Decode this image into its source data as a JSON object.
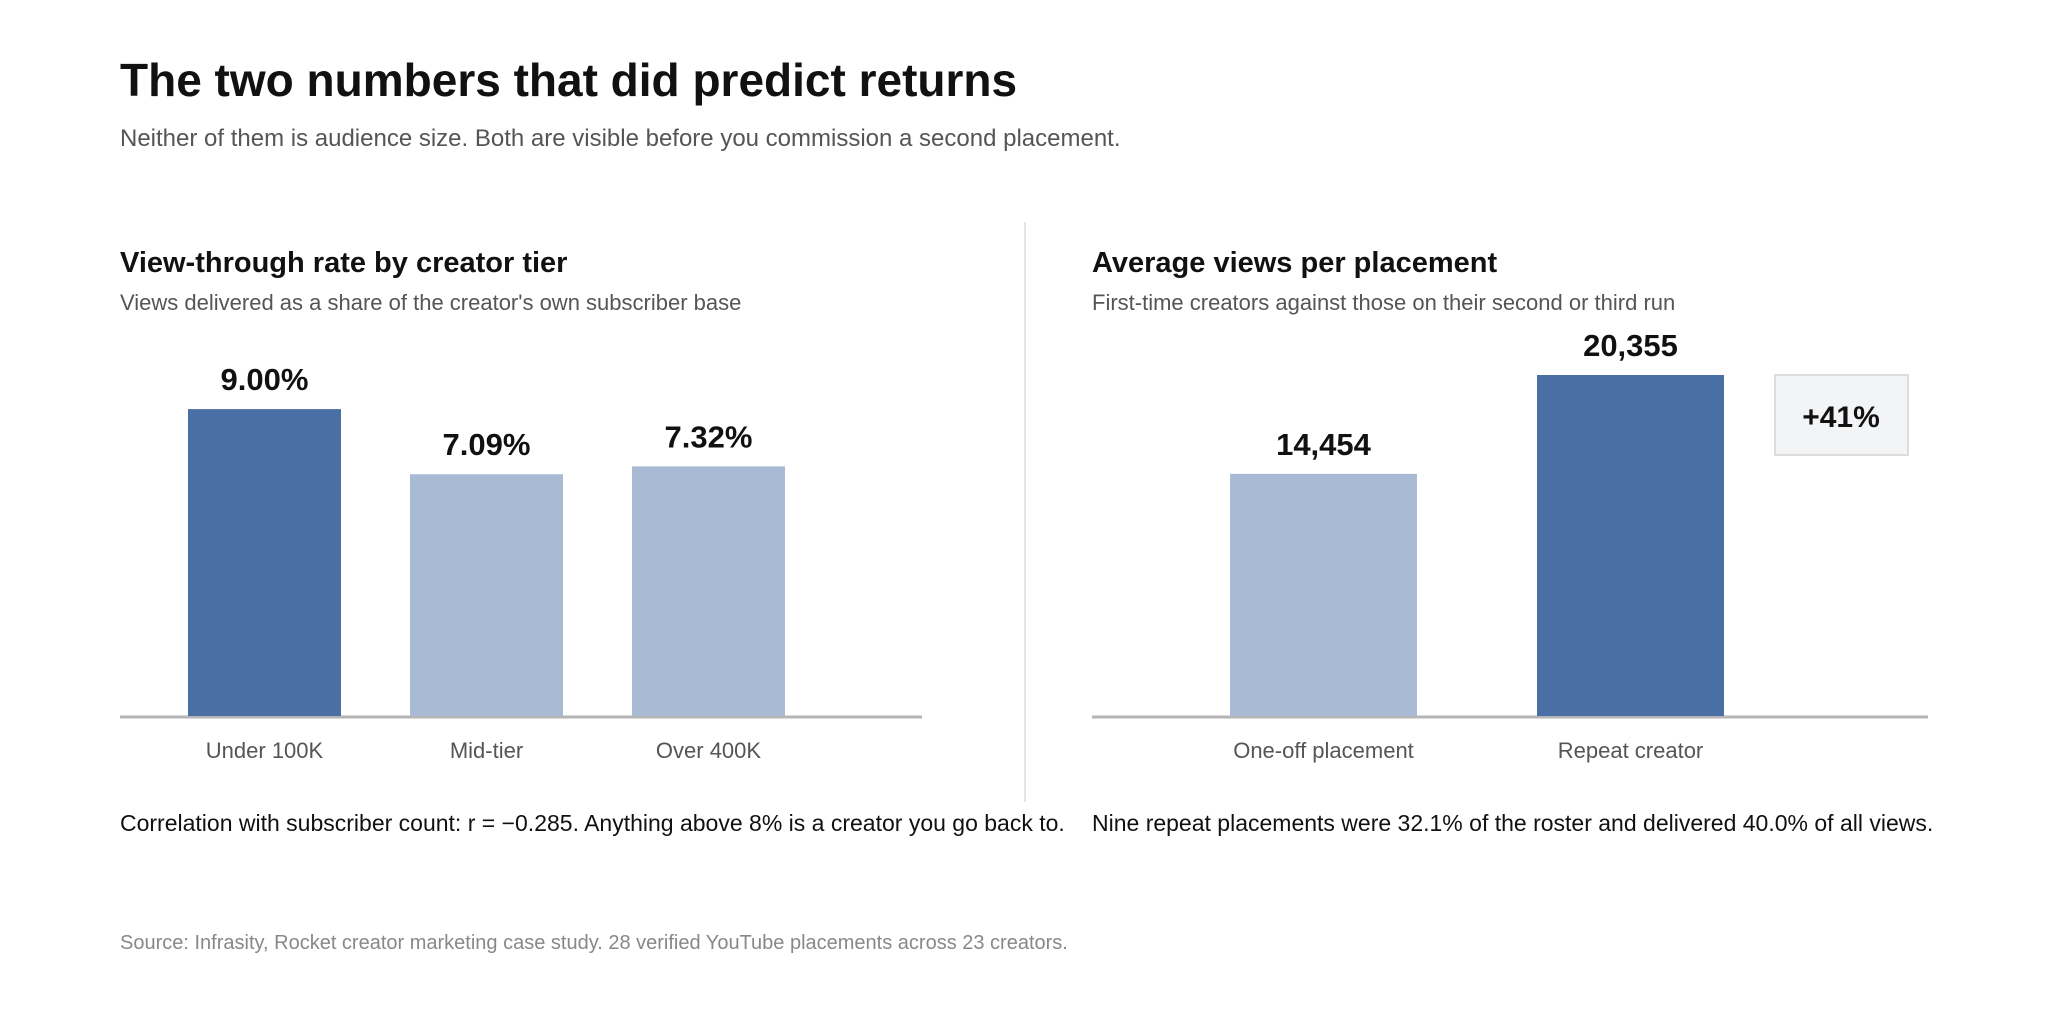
{
  "header": {
    "title": "The two numbers that did predict returns",
    "subtitle": "Neither of them is audience size. Both are visible before you commission a second placement."
  },
  "colors": {
    "highlight": "#4a6fa5",
    "muted": "#a9bbd4",
    "axis": "#b5b5b5",
    "callout_bg": "#f3f4f6",
    "callout_border": "#dddddd"
  },
  "chart_data": [
    {
      "type": "bar",
      "title": "View-through rate by creator tier",
      "subtitle": "Views delivered as a share of the creator's own subscriber base",
      "categories": [
        "Under 100K",
        "Mid-tier",
        "Over 400K"
      ],
      "values": [
        9.0,
        7.09,
        7.32
      ],
      "value_labels": [
        "9.00%",
        "7.09%",
        "7.32%"
      ],
      "highlight": [
        true,
        false,
        false
      ],
      "ylim": [
        0,
        10
      ],
      "grid": false,
      "caption": "Correlation with subscriber count: r = −0.285. Anything above 8% is a creator you go back to."
    },
    {
      "type": "bar",
      "title": "Average views per placement",
      "subtitle": "First-time creators against those on their second or third run",
      "categories": [
        "One-off placement",
        "Repeat creator"
      ],
      "values": [
        14454,
        20355
      ],
      "value_labels": [
        "14,454",
        "20,355"
      ],
      "highlight": [
        false,
        true
      ],
      "ylim": [
        0,
        20355
      ],
      "grid": false,
      "annotation": "+41%",
      "caption": "Nine repeat placements were 32.1% of the roster and delivered 40.0% of all views."
    }
  ],
  "footer": {
    "source": "Source: Infrasity, Rocket creator marketing case study. 28 verified YouTube placements across 23 creators."
  }
}
